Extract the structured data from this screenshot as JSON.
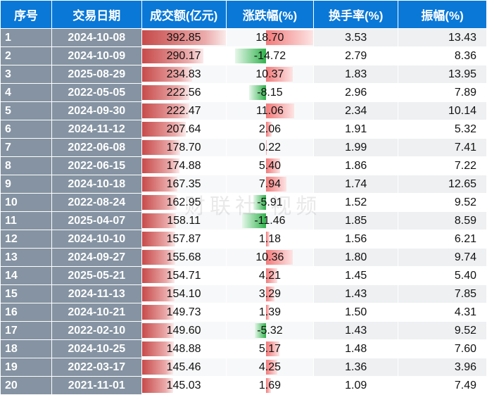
{
  "chart_data": {
    "type": "table",
    "columns": [
      "序号",
      "交易日期",
      "成交额(亿元)",
      "涨跌幅(%)",
      "换手率(%)",
      "振幅(%)"
    ],
    "rows": [
      [
        "1",
        "2024-10-08",
        "392.85",
        "18.70",
        "3.53",
        "13.43"
      ],
      [
        "2",
        "2024-10-09",
        "290.17",
        "-14.72",
        "2.79",
        "8.36"
      ],
      [
        "3",
        "2025-08-29",
        "234.83",
        "10.37",
        "1.83",
        "13.95"
      ],
      [
        "4",
        "2022-05-05",
        "222.56",
        "-8.15",
        "2.96",
        "7.89"
      ],
      [
        "5",
        "2024-09-30",
        "222.47",
        "11.06",
        "2.34",
        "10.14"
      ],
      [
        "6",
        "2024-11-12",
        "207.64",
        "2.06",
        "1.91",
        "5.32"
      ],
      [
        "7",
        "2022-06-08",
        "178.70",
        "0.22",
        "1.99",
        "7.41"
      ],
      [
        "8",
        "2022-06-15",
        "174.88",
        "5.40",
        "1.86",
        "7.22"
      ],
      [
        "9",
        "2024-10-18",
        "167.35",
        "7.94",
        "1.74",
        "12.65"
      ],
      [
        "10",
        "2022-08-24",
        "162.95",
        "-5.91",
        "1.52",
        "9.52"
      ],
      [
        "11",
        "2025-04-07",
        "158.11",
        "-11.46",
        "1.85",
        "8.59"
      ],
      [
        "12",
        "2024-10-10",
        "157.87",
        "1.18",
        "1.56",
        "6.21"
      ],
      [
        "13",
        "2024-09-27",
        "155.68",
        "10.36",
        "1.80",
        "9.74"
      ],
      [
        "14",
        "2025-05-21",
        "154.71",
        "4.21",
        "1.45",
        "5.40"
      ],
      [
        "15",
        "2024-11-13",
        "154.10",
        "3.29",
        "1.43",
        "7.85"
      ],
      [
        "16",
        "2024-10-21",
        "149.73",
        "1.39",
        "1.50",
        "4.31"
      ],
      [
        "17",
        "2022-02-10",
        "149.60",
        "-5.32",
        "1.43",
        "9.52"
      ],
      [
        "18",
        "2024-10-25",
        "148.88",
        "5.17",
        "1.48",
        "7.60"
      ],
      [
        "19",
        "2022-03-17",
        "145.46",
        "4.25",
        "1.36",
        "3.96"
      ],
      [
        "20",
        "2021-11-01",
        "145.03",
        "1.69",
        "1.09",
        "7.49"
      ]
    ],
    "data_bars": {
      "amount_column": 2,
      "change_column": 3,
      "up_color": "#f27a7a",
      "down_color": "#30b24c",
      "amount_color": "#c74a4a"
    }
  },
  "watermark": "财联社 视频"
}
